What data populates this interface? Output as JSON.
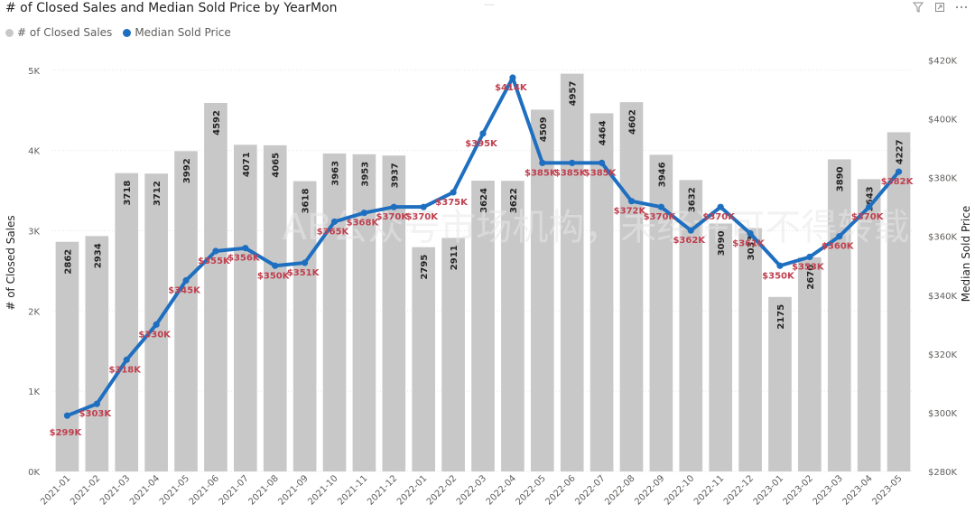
{
  "header": {
    "title": "# of Closed Sales and Median Sold Price by YearMon",
    "grip": "....."
  },
  "legend": {
    "items": [
      {
        "label": "# of Closed Sales",
        "color": "#c8c8c8"
      },
      {
        "label": "Median Sold Price",
        "color": "#1f6fc0"
      }
    ]
  },
  "toolbar": {
    "filter_icon": "filter-icon",
    "focus_icon": "focus-mode-icon",
    "more_icon": "more-options-icon"
  },
  "watermark": "AB公众号市场机构，未经许可不得转载",
  "chart_data": {
    "type": "bar",
    "title": "# of Closed Sales and Median Sold Price by YearMon",
    "categories": [
      "2021-01",
      "2021-02",
      "2021-03",
      "2021-04",
      "2021-05",
      "2021-06",
      "2021-07",
      "2021-08",
      "2021-09",
      "2021-10",
      "2021-11",
      "2021-12",
      "2022-01",
      "2022-02",
      "2022-03",
      "2022-04",
      "2022-05",
      "2022-06",
      "2022-07",
      "2022-08",
      "2022-09",
      "2022-10",
      "2022-11",
      "2022-12",
      "2023-01",
      "2023-02",
      "2023-03",
      "2023-04",
      "2023-05"
    ],
    "series": [
      {
        "name": "# of Closed Sales",
        "type": "bar",
        "axis": "left",
        "color": "#c8c8c8",
        "values": [
          2862,
          2934,
          3718,
          3712,
          3992,
          4592,
          4071,
          4065,
          3618,
          3963,
          3953,
          3937,
          2795,
          2911,
          3624,
          3622,
          4509,
          4957,
          4464,
          4602,
          3946,
          3632,
          3090,
          3033,
          2175,
          2670,
          3890,
          3643,
          4227
        ],
        "labels": [
          "2862",
          "2934",
          "3718",
          "3712",
          "3992",
          "4592",
          "4071",
          "4065",
          "3618",
          "3963",
          "3953",
          "3937",
          "2795",
          "2911",
          "3624",
          "3622",
          "4509",
          "4957",
          "4464",
          "4602",
          "3946",
          "3632",
          "3090",
          "3033",
          "2175",
          "2670",
          "3890",
          "3643",
          "4227"
        ]
      },
      {
        "name": "Median Sold Price",
        "type": "line",
        "axis": "right",
        "color": "#1f6fc0",
        "values": [
          299000,
          303000,
          318000,
          330000,
          345000,
          355000,
          356000,
          350000,
          351000,
          365000,
          368000,
          370000,
          370000,
          375000,
          395000,
          414000,
          385000,
          385000,
          385000,
          372000,
          370000,
          362000,
          370000,
          361000,
          350000,
          353000,
          360000,
          370000,
          382000
        ],
        "labels": [
          "$299K",
          "$303K",
          "$318K",
          "$330K",
          "$345K",
          "$355K",
          "$356K",
          "$350K",
          "$351K",
          "$365K",
          "$368K",
          "$370K",
          "$370K",
          "$375K",
          "$395K",
          "$414K",
          "$385K",
          "$385K",
          "$385K",
          "$372K",
          "$370K",
          "$362K",
          "$370K",
          "$361K",
          "$350K",
          "$353K",
          "$360K",
          "$370K",
          "$382K"
        ]
      }
    ],
    "y_left": {
      "label": "# of Closed Sales",
      "ylim": [
        0,
        5200
      ],
      "ticks": [
        0,
        1000,
        2000,
        3000,
        4000,
        5000
      ],
      "tick_labels": [
        "0K",
        "1K",
        "2K",
        "3K",
        "4K",
        "5K"
      ]
    },
    "y_right": {
      "label": "Median Sold Price",
      "ylim": [
        280000,
        422000
      ],
      "ticks": [
        280000,
        300000,
        320000,
        340000,
        360000,
        380000,
        400000,
        420000
      ],
      "tick_labels": [
        "$280K",
        "$300K",
        "$320K",
        "$340K",
        "$360K",
        "$380K",
        "$400K",
        "$420K"
      ]
    },
    "grid": true,
    "legend_position": "top-left"
  }
}
